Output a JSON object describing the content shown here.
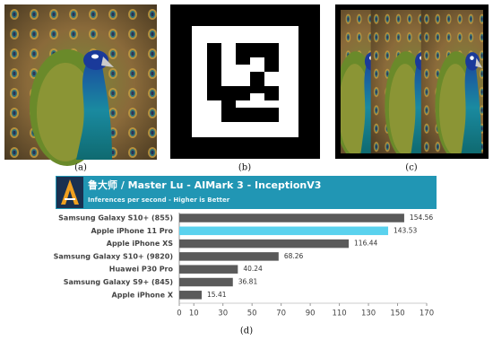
{
  "figure": {
    "captions": [
      "(a)",
      "(b)",
      "(c)"
    ]
  },
  "chart_data": {
    "type": "bar",
    "orientation": "horizontal",
    "title": "鲁大师 / Master Lu - AIMark 3 - InceptionV3",
    "subtitle": "Inferences per second - Higher is Better",
    "caption": "(d)",
    "categories": [
      "Samsung Galaxy S10+ (855)",
      "Apple iPhone 11 Pro",
      "Apple iPhone XS",
      "Samsung Galaxy S10+ (9820)",
      "Huawei P30 Pro",
      "Samsung Galaxy S9+ (845)",
      "Apple iPhone X"
    ],
    "values": [
      154.56,
      143.53,
      116.44,
      68.26,
      40.24,
      36.81,
      15.41
    ],
    "colors": [
      "#5a5a5a",
      "#5ad2ee",
      "#5a5a5a",
      "#5a5a5a",
      "#5a5a5a",
      "#5a5a5a",
      "#5a5a5a"
    ],
    "xlim": [
      0,
      170
    ],
    "xticks": [
      0,
      10,
      30,
      50,
      70,
      90,
      110,
      130,
      150,
      170
    ]
  }
}
